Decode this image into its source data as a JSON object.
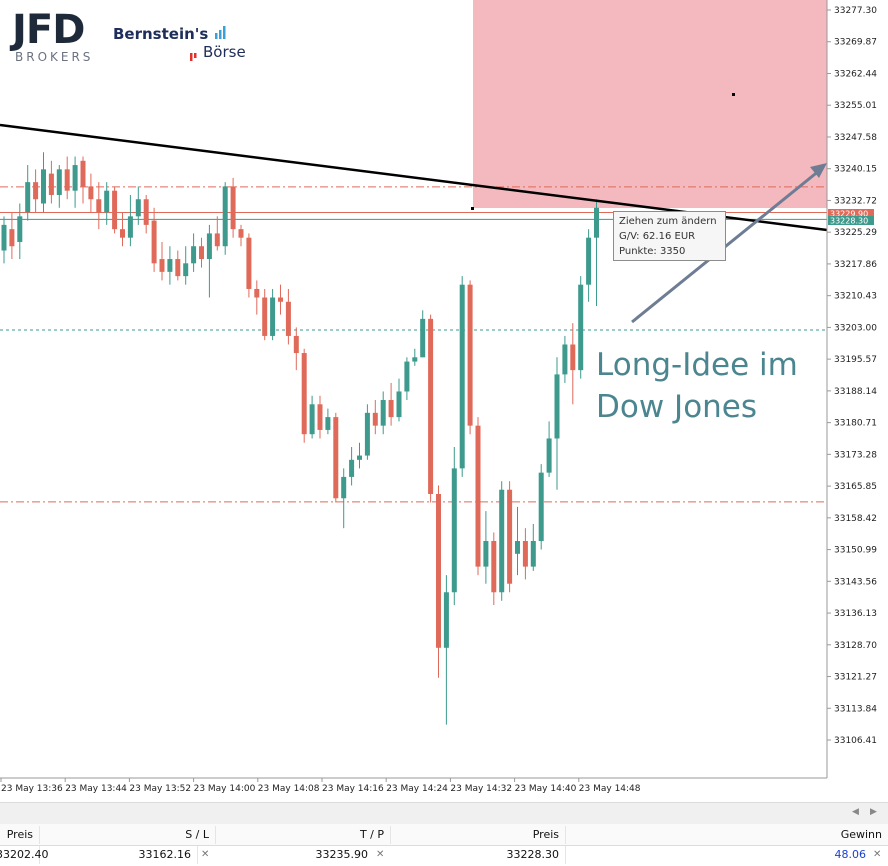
{
  "logos": {
    "jfd": "JFD",
    "brokers": "BROKERS",
    "bernstein_line1": "Bernstein's",
    "bernstein_line2": "Börse"
  },
  "annotation": {
    "line1": "Long-Idee im",
    "line2": "Dow Jones"
  },
  "tooltip": {
    "line1": "Ziehen zum ändern",
    "line2": "G/V: 62.16 EUR",
    "line3": "Punkte: 3350"
  },
  "price_axis": {
    "labels": [
      "33277.30",
      "33269.87",
      "33262.44",
      "33255.01",
      "33247.58",
      "33240.15",
      "33232.72",
      "33225.29",
      "33217.86",
      "33210.43",
      "33203.00",
      "33195.57",
      "33188.14",
      "33180.71",
      "33173.28",
      "33165.85",
      "33158.42",
      "33150.99",
      "33143.56",
      "33136.13",
      "33128.70",
      "33121.27",
      "33113.84",
      "33106.41"
    ],
    "marker_tp": "33229.90",
    "marker_current": "33228.30"
  },
  "time_axis": {
    "labels": [
      "23 May 13:36",
      "23 May 13:44",
      "23 May 13:52",
      "23 May 14:00",
      "23 May 14:08",
      "23 May 14:16",
      "23 May 14:24",
      "23 May 14:32",
      "23 May 14:40",
      "23 May 14:48"
    ]
  },
  "colors": {
    "bull": "#3d9a8c",
    "bear": "#e06a5a",
    "zone": "#f4b8bf",
    "trendline": "#000000",
    "arrow": "#6e7d93",
    "text_annotation": "#4a8590",
    "gain": "#1a3fd0"
  },
  "chart_data": {
    "type": "candlestick",
    "levels": {
      "take_profit": 33235.9,
      "stop_loss": 33162.16,
      "entry": 33202.4,
      "current": 33228.3,
      "tp_marker": 33229.9
    }
  },
  "table": {
    "headers": {
      "preis1": "Preis",
      "sl": "S / L",
      "tp": "T / P",
      "preis2": "Preis",
      "gewinn": "Gewinn"
    },
    "row": {
      "preis1": "33202.40",
      "sl": "33162.16",
      "tp": "33235.90",
      "preis2": "33228.30",
      "gewinn": "48.06"
    }
  }
}
